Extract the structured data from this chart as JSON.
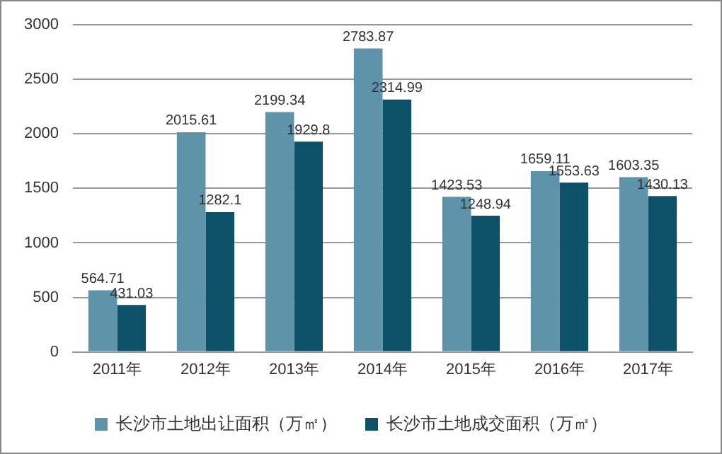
{
  "chart_data": {
    "type": "bar",
    "categories": [
      "2011年",
      "2012年",
      "2013年",
      "2014年",
      "2015年",
      "2016年",
      "2017年"
    ],
    "series": [
      {
        "name": "长沙市土地出让面积（万㎡）",
        "color": "#5e93a9",
        "values": [
          564.71,
          2015.61,
          2199.34,
          2783.87,
          1423.53,
          1659.11,
          1603.35
        ]
      },
      {
        "name": "长沙市土地成交面积（万㎡）",
        "color": "#0d5169",
        "values": [
          431.03,
          1282.1,
          1929.8,
          2314.99,
          1248.94,
          1553.63,
          1430.13
        ]
      }
    ],
    "ylim": [
      0,
      3000
    ],
    "yticks": [
      0,
      500,
      1000,
      1500,
      2000,
      2500,
      3000
    ],
    "grid": "y",
    "legend": "bottom",
    "data_labels": true
  }
}
